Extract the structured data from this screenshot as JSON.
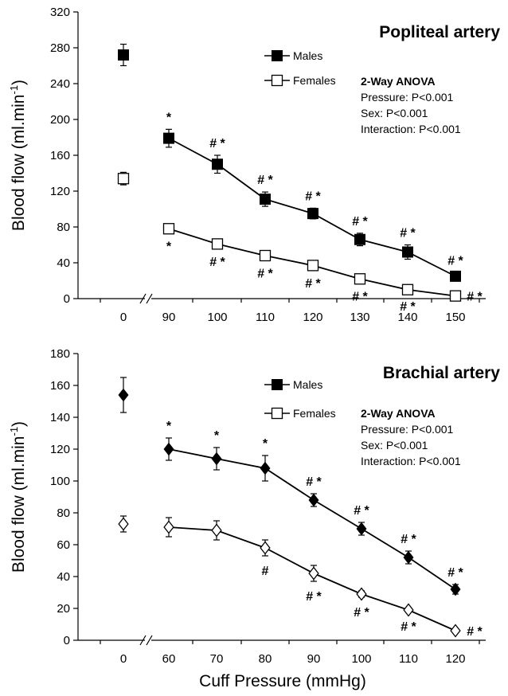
{
  "chart_data": [
    {
      "type": "line",
      "title": "Popliteal artery",
      "ylabel": "Blood flow (ml.min-1)",
      "ylabel_main": "Blood flow (ml.min",
      "ylabel_sup": "-1",
      "ylabel_close": ")",
      "xlabel": "",
      "ylim": [
        0,
        320
      ],
      "yticks": [
        "0",
        "40",
        "80",
        "120",
        "160",
        "200",
        "240",
        "280",
        "320"
      ],
      "x": [
        "0",
        "90",
        "100",
        "110",
        "120",
        "130",
        "140",
        "150"
      ],
      "legend_position": "top-center",
      "anova": {
        "heading": "2-Way ANOVA",
        "lines": [
          "Pressure: P<0.001",
          "Sex: P<0.001",
          "Interaction: P<0.001"
        ]
      },
      "series": [
        {
          "name": "Males",
          "marker": "filled-square",
          "values": [
            272,
            179,
            150,
            111,
            95,
            66,
            52,
            25
          ],
          "errors": [
            12,
            10,
            10,
            8,
            6,
            7,
            8,
            4
          ],
          "annotations": [
            "",
            "*",
            "#*",
            "#*",
            "#*",
            "#*",
            "#*",
            "#*"
          ]
        },
        {
          "name": "Females",
          "marker": "open-square",
          "values": [
            134,
            78,
            61,
            48,
            37,
            22,
            10,
            3
          ],
          "errors": [
            7,
            3,
            3,
            3,
            3,
            3,
            2,
            1
          ],
          "annotations": [
            "",
            "*",
            "#*",
            "#*",
            "#*",
            "#*",
            "#*",
            "#*"
          ]
        }
      ]
    },
    {
      "type": "line",
      "title": "Brachial artery",
      "ylabel": "Blood flow (ml.min-1)",
      "ylabel_main": "Blood flow (ml.min",
      "ylabel_sup": "-1",
      "ylabel_close": ")",
      "xlabel": "Cuff Pressure (mmHg)",
      "ylim": [
        0,
        180
      ],
      "yticks": [
        "0",
        "20",
        "40",
        "60",
        "80",
        "100",
        "120",
        "140",
        "160",
        "180"
      ],
      "x": [
        "0",
        "60",
        "70",
        "80",
        "90",
        "100",
        "110",
        "120"
      ],
      "legend_position": "top-center",
      "anova": {
        "heading": "2-Way ANOVA",
        "lines": [
          "Pressure: P<0.001",
          "Sex: P<0.001",
          "Interaction: P<0.001"
        ]
      },
      "series": [
        {
          "name": "Males",
          "legend_marker": "filled-square",
          "marker": "filled-diamond",
          "values": [
            154,
            120,
            114,
            108,
            88,
            70,
            52,
            32
          ],
          "errors": [
            11,
            7,
            7,
            8,
            4,
            4,
            4,
            3
          ],
          "annotations": [
            "",
            "*",
            "*",
            "*",
            "#*",
            "#*",
            "#*",
            "#*"
          ]
        },
        {
          "name": "Females",
          "legend_marker": "open-square",
          "marker": "open-diamond",
          "values": [
            73,
            71,
            69,
            58,
            42,
            29,
            19,
            6
          ],
          "errors": [
            5,
            6,
            6,
            5,
            5,
            2,
            1,
            1
          ],
          "annotations": [
            "",
            "",
            "",
            "#",
            "#*",
            "#*",
            "#*",
            "#*"
          ]
        }
      ]
    }
  ]
}
